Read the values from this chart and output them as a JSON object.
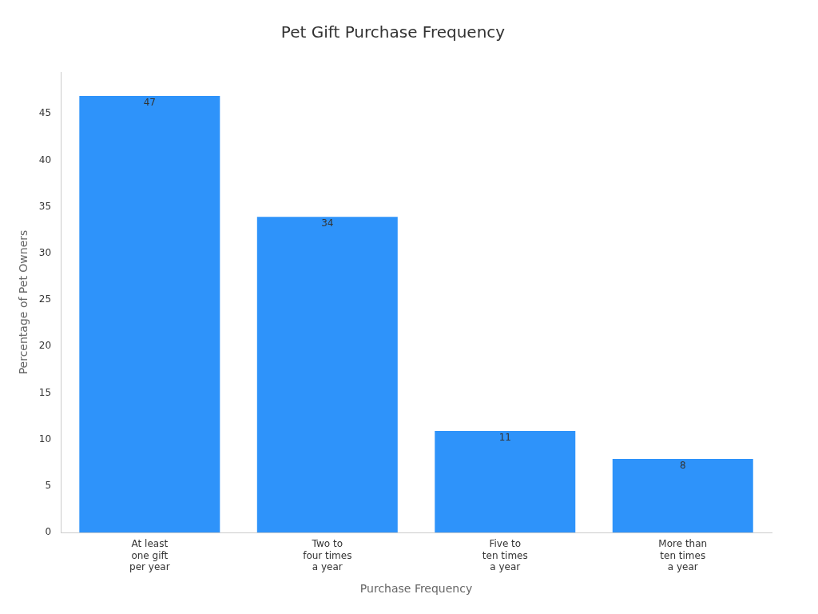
{
  "chart_data": {
    "type": "bar",
    "title": "Pet Gift Purchase Frequency",
    "xlabel": "Purchase Frequency",
    "ylabel": "Percentage of Pet Owners",
    "categories": [
      "At least one gift per year",
      "Two to four times a year",
      "Five to ten times a year",
      "More than ten times a year"
    ],
    "values": [
      47,
      34,
      11,
      8
    ],
    "color": "#2e93fa",
    "ylim": [
      0,
      49.5
    ],
    "yticks": [
      0,
      5,
      10,
      15,
      20,
      25,
      30,
      35,
      40,
      45
    ],
    "grid": false,
    "legend": false,
    "data_labels": true
  }
}
